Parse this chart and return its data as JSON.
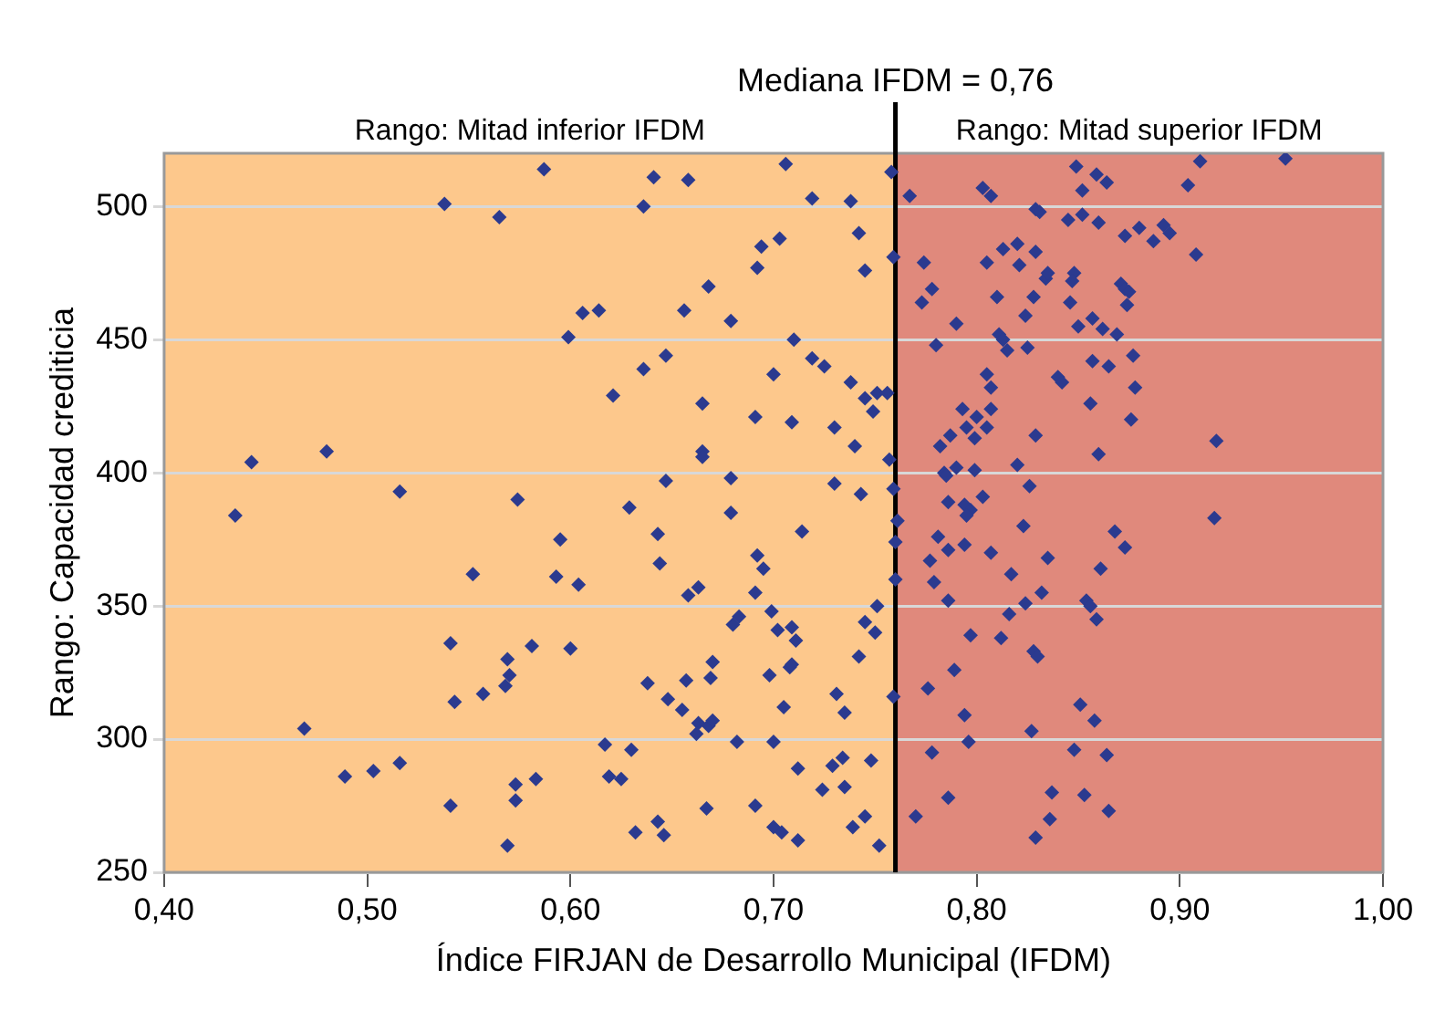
{
  "chart_data": {
    "type": "scatter",
    "xlabel": "Índice FIRJAN de Desarrollo Municipal (IFDM)",
    "ylabel": "Rango: Capacidad crediticia",
    "color": "#2b3a8f",
    "marker": "diamond",
    "xlim": [
      0.4,
      1.0
    ],
    "ylim": [
      250,
      520
    ],
    "xticks": [
      {
        "value": 0.4,
        "label": "0,40"
      },
      {
        "value": 0.5,
        "label": "0,50"
      },
      {
        "value": 0.6,
        "label": "0,60"
      },
      {
        "value": 0.7,
        "label": "0,70"
      },
      {
        "value": 0.8,
        "label": "0,80"
      },
      {
        "value": 0.9,
        "label": "0,90"
      },
      {
        "value": 1.0,
        "label": "1,00"
      }
    ],
    "yticks": [
      250,
      300,
      350,
      400,
      450,
      500
    ],
    "grid": "y",
    "ref_lines": [
      {
        "axis": "x",
        "value": 0.76,
        "label": "Mediana IFDM = 0,76",
        "color": "#000000"
      }
    ],
    "bands": [
      {
        "axis": "x",
        "from": 0.4,
        "to": 0.76,
        "label": "Rango: Mitad inferior IFDM",
        "color": "#fdc88c"
      },
      {
        "axis": "x",
        "from": 0.76,
        "to": 1.0,
        "label": "Rango: Mitad superior IFDM",
        "color": "#e0897c"
      }
    ],
    "x": [
      0.587,
      0.538,
      0.565,
      0.599,
      0.606,
      0.443,
      0.48,
      0.435,
      0.516,
      0.574,
      0.641,
      0.658,
      0.706,
      0.636,
      0.719,
      0.738,
      0.742,
      0.745,
      0.694,
      0.703,
      0.692,
      0.668,
      0.614,
      0.656,
      0.679,
      0.71,
      0.719,
      0.725,
      0.738,
      0.745,
      0.749,
      0.751,
      0.647,
      0.636,
      0.7,
      0.621,
      0.665,
      0.691,
      0.709,
      0.73,
      0.74,
      0.665,
      0.665,
      0.647,
      0.679,
      0.73,
      0.743,
      0.629,
      0.679,
      0.758,
      0.767,
      0.849,
      0.852,
      0.859,
      0.864,
      0.91,
      0.952,
      0.904,
      0.803,
      0.807,
      0.829,
      0.831,
      0.845,
      0.852,
      0.86,
      0.873,
      0.88,
      0.887,
      0.892,
      0.895,
      0.908,
      0.759,
      0.774,
      0.805,
      0.813,
      0.82,
      0.821,
      0.829,
      0.834,
      0.835,
      0.848,
      0.847,
      0.871,
      0.873,
      0.875,
      0.874,
      0.778,
      0.773,
      0.81,
      0.828,
      0.846,
      0.824,
      0.79,
      0.857,
      0.85,
      0.862,
      0.869,
      0.811,
      0.813,
      0.815,
      0.825,
      0.78,
      0.857,
      0.865,
      0.877,
      0.805,
      0.807,
      0.84,
      0.842,
      0.878,
      0.756,
      0.793,
      0.807,
      0.8,
      0.856,
      0.876,
      0.795,
      0.799,
      0.805,
      0.787,
      0.782,
      0.829,
      0.918,
      0.86,
      0.757,
      0.784,
      0.785,
      0.79,
      0.799,
      0.82,
      0.826,
      0.759,
      0.803,
      0.786,
      0.794,
      0.797,
      0.795,
      0.761,
      0.917,
      0.823,
      0.76,
      0.781,
      0.794,
      0.786,
      0.777,
      0.807,
      0.835,
      0.868,
      0.873,
      0.861,
      0.817,
      0.76,
      0.779,
      0.832,
      0.786,
      0.824,
      0.854,
      0.856,
      0.859,
      0.816,
      0.751,
      0.75,
      0.797,
      0.812,
      0.828,
      0.83,
      0.789,
      0.759,
      0.776,
      0.794,
      0.851,
      0.858,
      0.827,
      0.796,
      0.778,
      0.848,
      0.864,
      0.837,
      0.853,
      0.786,
      0.865,
      0.836,
      0.77,
      0.829,
      0.752,
      0.595,
      0.552,
      0.593,
      0.604,
      0.541,
      0.569,
      0.57,
      0.568,
      0.581,
      0.6,
      0.543,
      0.557,
      0.469,
      0.489,
      0.503,
      0.516,
      0.541,
      0.573,
      0.573,
      0.583,
      0.569,
      0.643,
      0.644,
      0.714,
      0.692,
      0.695,
      0.658,
      0.663,
      0.691,
      0.699,
      0.68,
      0.683,
      0.702,
      0.709,
      0.711,
      0.745,
      0.67,
      0.669,
      0.657,
      0.638,
      0.648,
      0.655,
      0.663,
      0.662,
      0.668,
      0.67,
      0.698,
      0.708,
      0.709,
      0.705,
      0.742,
      0.731,
      0.735,
      0.617,
      0.63,
      0.682,
      0.7,
      0.619,
      0.625,
      0.712,
      0.729,
      0.734,
      0.748,
      0.724,
      0.735,
      0.667,
      0.691,
      0.643,
      0.646,
      0.632,
      0.7,
      0.704,
      0.712,
      0.739,
      0.745
    ],
    "values": [
      514,
      501,
      496,
      451,
      460,
      404,
      408,
      384,
      393,
      390,
      511,
      510,
      516,
      500,
      503,
      502,
      490,
      476,
      485,
      488,
      477,
      470,
      461,
      461,
      457,
      450,
      443,
      440,
      434,
      428,
      423,
      430,
      444,
      439,
      437,
      429,
      426,
      421,
      419,
      417,
      410,
      408,
      406,
      397,
      398,
      396,
      392,
      387,
      385,
      513,
      504,
      515,
      506,
      512,
      509,
      517,
      518,
      508,
      507,
      504,
      499,
      498,
      495,
      497,
      494,
      489,
      492,
      487,
      493,
      490,
      482,
      481,
      479,
      479,
      484,
      486,
      478,
      483,
      473,
      475,
      475,
      472,
      471,
      469,
      468,
      463,
      469,
      464,
      466,
      466,
      464,
      459,
      456,
      458,
      455,
      454,
      452,
      452,
      450,
      446,
      447,
      448,
      442,
      440,
      444,
      437,
      432,
      436,
      434,
      432,
      430,
      424,
      424,
      421,
      426,
      420,
      417,
      413,
      417,
      414,
      410,
      414,
      412,
      407,
      405,
      400,
      399,
      402,
      401,
      403,
      395,
      394,
      391,
      389,
      388,
      386,
      384,
      382,
      383,
      380,
      374,
      376,
      373,
      371,
      367,
      370,
      368,
      378,
      372,
      364,
      362,
      360,
      359,
      355,
      352,
      351,
      352,
      350,
      345,
      347,
      350,
      340,
      339,
      338,
      333,
      331,
      326,
      316,
      319,
      309,
      313,
      307,
      303,
      299,
      295,
      296,
      294,
      280,
      279,
      278,
      273,
      270,
      271,
      263,
      260,
      375,
      362,
      361,
      358,
      336,
      330,
      324,
      320,
      335,
      334,
      314,
      317,
      304,
      286,
      288,
      291,
      275,
      283,
      277,
      285,
      260,
      377,
      366,
      378,
      369,
      364,
      354,
      357,
      355,
      348,
      343,
      346,
      341,
      342,
      337,
      344,
      329,
      323,
      322,
      321,
      315,
      311,
      306,
      302,
      305,
      307,
      324,
      327,
      328,
      312,
      331,
      317,
      310,
      298,
      296,
      299,
      299,
      286,
      285,
      289,
      290,
      293,
      292,
      281,
      282,
      274,
      275,
      269,
      264,
      265,
      267,
      265,
      262,
      267,
      271
    ]
  }
}
